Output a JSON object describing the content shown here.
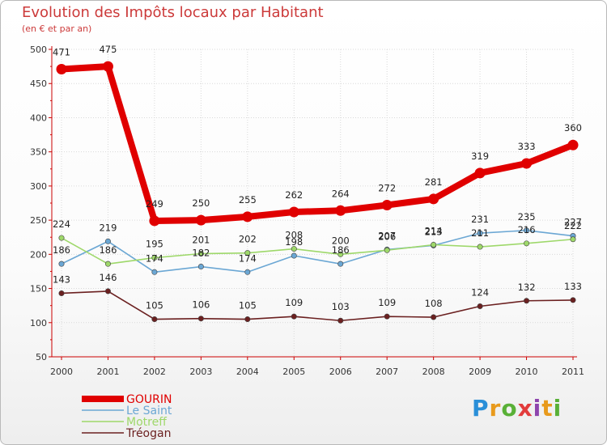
{
  "title": "Evolution des Impôts locaux par Habitant",
  "subtitle": "(en € et par an)",
  "logo": {
    "text": "Proxiti"
  },
  "chart_data": {
    "type": "line",
    "title": "Evolution des Impôts locaux par Habitant",
    "subtitle": "(en € et par an)",
    "xlabel": "",
    "ylabel": "",
    "categories": [
      "2000",
      "2001",
      "2002",
      "2003",
      "2004",
      "2005",
      "2006",
      "2007",
      "2008",
      "2009",
      "2010",
      "2011"
    ],
    "yticks": [
      "50",
      "100",
      "150",
      "200",
      "250",
      "300",
      "350",
      "400",
      "450",
      "500"
    ],
    "ylim": [
      50,
      500
    ],
    "series": [
      {
        "name": "GOURIN",
        "color": "#e00000",
        "values": [
          471,
          475,
          249,
          250,
          255,
          262,
          264,
          272,
          281,
          319,
          333,
          360
        ]
      },
      {
        "name": "Le Saint",
        "color": "#6ba7d4",
        "values": [
          186,
          219,
          174,
          182,
          174,
          198,
          186,
          207,
          213,
          231,
          235,
          227
        ]
      },
      {
        "name": "Motreff",
        "color": "#9ed86a",
        "values": [
          224,
          186,
          195,
          201,
          202,
          208,
          200,
          206,
          214,
          211,
          216,
          222
        ]
      },
      {
        "name": "Tréogan",
        "color": "#6b2020",
        "values": [
          143,
          146,
          105,
          106,
          105,
          109,
          103,
          109,
          108,
          124,
          132,
          133
        ]
      }
    ],
    "legend_position": "bottom-left"
  }
}
